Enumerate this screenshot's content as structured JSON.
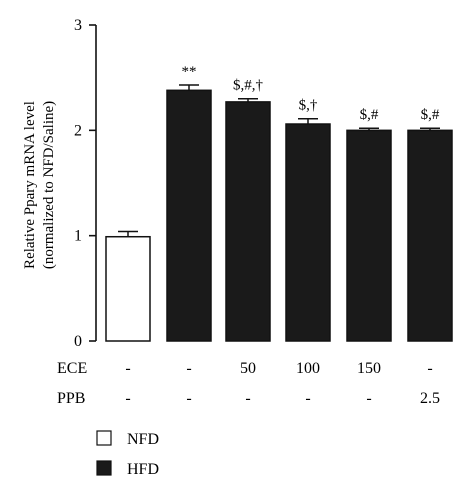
{
  "chart_data": {
    "type": "bar",
    "ylabel_line1": "Relative Ppary mRNA level",
    "ylabel_line2": "(normalized to NFD/Saline)",
    "ylim": [
      0,
      3
    ],
    "yticks": [
      "0",
      "1",
      "2",
      "3"
    ],
    "bars": [
      {
        "group": "NFD",
        "value": 0.99,
        "error": 0.05,
        "annotation": "",
        "ece": "-",
        "ppb": "-"
      },
      {
        "group": "HFD",
        "value": 2.38,
        "error": 0.05,
        "annotation": "**",
        "ece": "-",
        "ppb": "-"
      },
      {
        "group": "HFD",
        "value": 2.27,
        "error": 0.03,
        "annotation": "$,#,†",
        "ece": "50",
        "ppb": "-"
      },
      {
        "group": "HFD",
        "value": 2.06,
        "error": 0.05,
        "annotation": "$,†",
        "ece": "100",
        "ppb": "-"
      },
      {
        "group": "HFD",
        "value": 2.0,
        "error": 0.02,
        "annotation": "$,#",
        "ece": "150",
        "ppb": "-"
      },
      {
        "group": "HFD",
        "value": 2.0,
        "error": 0.02,
        "annotation": "$,#",
        "ece": "-",
        "ppb": "2.5"
      }
    ],
    "row_labels": {
      "ece": "ECE",
      "ppb": "PPB"
    },
    "legend": [
      {
        "label": "NFD",
        "fill": "#ffffff"
      },
      {
        "label": "HFD",
        "fill": "#1a1a1a"
      }
    ],
    "legend_placement": "bottom-left",
    "grid": false
  }
}
